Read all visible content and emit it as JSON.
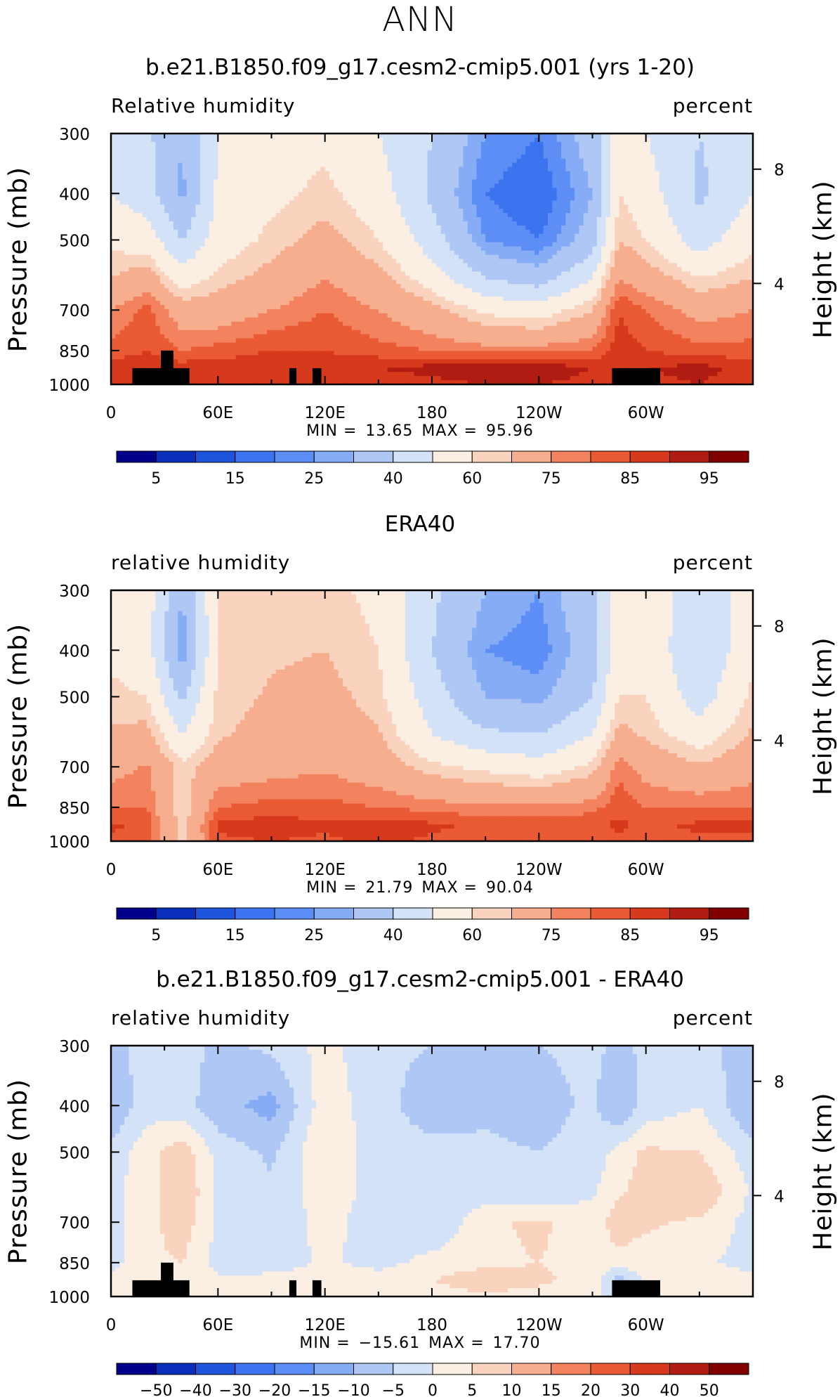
{
  "page": {
    "title": "ANN"
  },
  "chart_data": [
    {
      "type": "heatmap",
      "title": "b.e21.B1850.f09_g17.cesm2-cmip5.001 (yrs 1-20)",
      "left_label": "Relative humidity",
      "right_label": "percent",
      "xlabel": "",
      "ylabel": "Pressure (mb)",
      "y2label": "Height (km)",
      "x_ticks": [
        "0",
        "60E",
        "120E",
        "180",
        "120W",
        "60W"
      ],
      "y_ticks": [
        "300",
        "400",
        "500",
        "700",
        "850",
        "1000"
      ],
      "y2_ticks": [
        "8",
        "4"
      ],
      "min_label": "MIN =",
      "min": "13.65",
      "max_label": "MAX =",
      "max": "95.96",
      "colorbar": {
        "labels": [
          "5",
          "15",
          "25",
          "40",
          "60",
          "75",
          "85",
          "95"
        ],
        "colors": [
          "#00008b",
          "#0a2fbb",
          "#1f55dc",
          "#3c73ee",
          "#5d8ef6",
          "#86acf6",
          "#aec7f4",
          "#d3e2f7",
          "#fbeee3",
          "#fad3bf",
          "#f6ae8f",
          "#f3825f",
          "#e95a35",
          "#d6391c",
          "#b01c12",
          "#800000"
        ]
      },
      "profile_levels": [
        300,
        400,
        500,
        600,
        700,
        850,
        925,
        1000
      ],
      "profile_lons": [
        0,
        20,
        40,
        60,
        90,
        120,
        150,
        180,
        210,
        240,
        270,
        285,
        300,
        330,
        360
      ],
      "profile_values": [
        [
          45,
          42,
          30,
          50,
          55,
          58,
          50,
          40,
          25,
          20,
          35,
          55,
          50,
          40,
          45
        ],
        [
          50,
          45,
          28,
          52,
          58,
          62,
          55,
          38,
          20,
          15,
          30,
          60,
          55,
          38,
          50
        ],
        [
          58,
          55,
          40,
          55,
          62,
          68,
          60,
          45,
          25,
          20,
          35,
          65,
          60,
          45,
          58
        ],
        [
          65,
          70,
          55,
          62,
          68,
          75,
          68,
          55,
          40,
          35,
          50,
          75,
          70,
          60,
          65
        ],
        [
          75,
          82,
          70,
          70,
          75,
          80,
          75,
          68,
          58,
          55,
          65,
          85,
          80,
          72,
          75
        ],
        [
          82,
          85,
          80,
          82,
          85,
          85,
          82,
          80,
          78,
          78,
          80,
          88,
          85,
          82,
          82
        ],
        [
          88,
          88,
          88,
          88,
          90,
          88,
          90,
          92,
          95,
          94,
          90,
          90,
          90,
          92,
          88
        ],
        [
          85,
          85,
          85,
          86,
          87,
          86,
          87,
          88,
          90,
          90,
          88,
          86,
          88,
          90,
          85
        ]
      ]
    },
    {
      "type": "heatmap",
      "title": "ERA40",
      "left_label": "relative humidity",
      "right_label": "percent",
      "xlabel": "",
      "ylabel": "Pressure (mb)",
      "y2label": "Height (km)",
      "x_ticks": [
        "0",
        "60E",
        "120E",
        "180",
        "120W",
        "60W"
      ],
      "y_ticks": [
        "300",
        "400",
        "500",
        "700",
        "850",
        "1000"
      ],
      "y2_ticks": [
        "8",
        "4"
      ],
      "min_label": "MIN =",
      "min": "21.79",
      "max_label": "MAX =",
      "max": "90.04",
      "colorbar": {
        "labels": [
          "5",
          "15",
          "25",
          "40",
          "60",
          "75",
          "85",
          "95"
        ],
        "colors": [
          "#00008b",
          "#0a2fbb",
          "#1f55dc",
          "#3c73ee",
          "#5d8ef6",
          "#86acf6",
          "#aec7f4",
          "#d3e2f7",
          "#fbeee3",
          "#fad3bf",
          "#f6ae8f",
          "#f3825f",
          "#e95a35",
          "#d6391c",
          "#b01c12",
          "#800000"
        ]
      },
      "profile_levels": [
        300,
        400,
        500,
        600,
        700,
        850,
        925,
        1000
      ],
      "profile_lons": [
        0,
        20,
        40,
        60,
        90,
        120,
        150,
        180,
        210,
        240,
        270,
        285,
        300,
        330,
        360
      ],
      "profile_values": [
        [
          55,
          55,
          30,
          60,
          62,
          62,
          58,
          42,
          30,
          25,
          38,
          55,
          58,
          42,
          55
        ],
        [
          58,
          55,
          25,
          60,
          64,
          65,
          60,
          40,
          25,
          22,
          35,
          58,
          58,
          40,
          58
        ],
        [
          62,
          60,
          38,
          62,
          66,
          68,
          62,
          45,
          30,
          28,
          40,
          60,
          60,
          45,
          62
        ],
        [
          66,
          68,
          50,
          64,
          68,
          70,
          66,
          50,
          42,
          40,
          50,
          68,
          64,
          55,
          66
        ],
        [
          72,
          76,
          62,
          70,
          72,
          74,
          70,
          62,
          58,
          55,
          62,
          78,
          72,
          66,
          72
        ],
        [
          80,
          80,
          60,
          80,
          82,
          82,
          80,
          78,
          76,
          76,
          78,
          84,
          80,
          80,
          80
        ],
        [
          86,
          84,
          62,
          86,
          88,
          86,
          88,
          86,
          84,
          84,
          84,
          86,
          84,
          86,
          86
        ],
        [
          84,
          82,
          62,
          84,
          85,
          84,
          86,
          84,
          82,
          82,
          82,
          84,
          82,
          84,
          84
        ]
      ]
    },
    {
      "type": "heatmap",
      "title": "b.e21.B1850.f09_g17.cesm2-cmip5.001 - ERA40",
      "left_label": "relative humidity",
      "right_label": "percent",
      "xlabel": "",
      "ylabel": "Pressure (mb)",
      "y2label": "Height (km)",
      "x_ticks": [
        "0",
        "60E",
        "120E",
        "180",
        "120W",
        "60W"
      ],
      "y_ticks": [
        "300",
        "400",
        "500",
        "700",
        "850",
        "1000"
      ],
      "y2_ticks": [
        "8",
        "4"
      ],
      "min_label": "MIN =",
      "min": "−15.61",
      "max_label": "MAX =",
      "max": "17.70",
      "colorbar": {
        "labels": [
          "−50",
          "−40",
          "−30",
          "−20",
          "−15",
          "−10",
          "−5",
          "0",
          "5",
          "10",
          "15",
          "20",
          "30",
          "40",
          "50"
        ],
        "colors": [
          "#00008b",
          "#0a2fbb",
          "#1f55dc",
          "#3c73ee",
          "#5d8ef6",
          "#86acf6",
          "#aec7f4",
          "#d3e2f7",
          "#fbeee3",
          "#fad3bf",
          "#f6ae8f",
          "#f3825f",
          "#e95a35",
          "#d6391c",
          "#b01c12",
          "#800000"
        ]
      },
      "profile_levels": [
        300,
        400,
        500,
        600,
        700,
        850,
        925,
        1000
      ],
      "profile_lons": [
        0,
        20,
        40,
        60,
        90,
        120,
        150,
        180,
        210,
        240,
        270,
        285,
        300,
        330,
        360
      ],
      "profile_values": [
        [
          -8,
          -2,
          -3,
          -6,
          -4,
          2,
          -4,
          -5,
          -6,
          -5,
          -4,
          -6,
          -4,
          -3,
          -8
        ],
        [
          -10,
          -2,
          -3,
          -8,
          -12,
          3,
          -3,
          -8,
          -6,
          -7,
          -4,
          -10,
          -3,
          0,
          -10
        ],
        [
          -3,
          3,
          8,
          -2,
          -6,
          5,
          -3,
          -3,
          -4,
          -5,
          -3,
          2,
          6,
          5,
          -3
        ],
        [
          -1,
          2,
          10,
          -1,
          -4,
          3,
          -2,
          -2,
          -3,
          -4,
          -1,
          4,
          8,
          10,
          -1
        ],
        [
          -2,
          3,
          8,
          -1,
          -4,
          2,
          -3,
          -5,
          4,
          6,
          2,
          8,
          6,
          4,
          -2
        ],
        [
          -2,
          4,
          5,
          -2,
          -3,
          1,
          -2,
          2,
          4,
          5,
          3,
          3,
          2,
          1,
          -2
        ],
        [
          2,
          3,
          2,
          1,
          2,
          2,
          3,
          5,
          8,
          6,
          3,
          -8,
          2,
          3,
          2
        ],
        [
          1,
          2,
          2,
          1,
          1,
          1,
          2,
          3,
          4,
          3,
          2,
          -3,
          2,
          2,
          1
        ]
      ]
    }
  ]
}
